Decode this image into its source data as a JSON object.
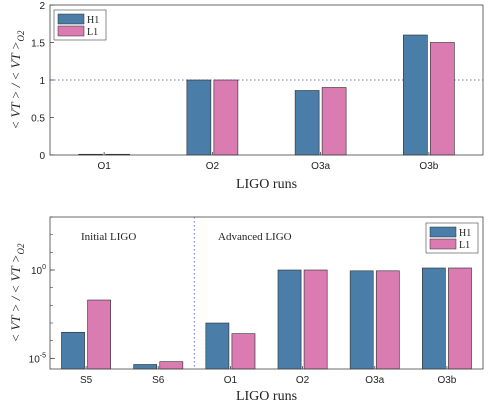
{
  "chart_data": [
    {
      "type": "bar",
      "categories": [
        "O1",
        "O2",
        "O3a",
        "O3b"
      ],
      "series": [
        {
          "name": "H1",
          "color": "#4a7ea8",
          "values": [
            0.01,
            1.0,
            0.86,
            1.6
          ]
        },
        {
          "name": "L1",
          "color": "#da7bb2",
          "values": [
            0.01,
            1.0,
            0.9,
            1.5
          ]
        }
      ],
      "xlabel": "LIGO runs",
      "ylabel": "< VT > / < VT >O2",
      "ylim": [
        0,
        2
      ],
      "yticks": [
        "0",
        "0.5",
        "1",
        "1.5",
        "2"
      ],
      "reference_line": {
        "y": 1,
        "style": "dotted",
        "color": "#6f6fe8"
      },
      "legend": "top-left",
      "grid": false,
      "yscale": "linear"
    },
    {
      "type": "bar",
      "categories": [
        "S5",
        "S6",
        "O1",
        "O2",
        "O3a",
        "O3b"
      ],
      "series": [
        {
          "name": "H1",
          "color": "#4a7ea8",
          "values": [
            0.0003,
            4.5e-06,
            0.001,
            1.0,
            0.9,
            1.3
          ]
        },
        {
          "name": "L1",
          "color": "#da7bb2",
          "values": [
            0.02,
            6.5e-06,
            0.00025,
            1.0,
            0.9,
            1.3
          ]
        }
      ],
      "xlabel": "LIGO runs",
      "ylabel": "< VT > / < VT >O2",
      "ylim": [
        2.5e-06,
        1000
      ],
      "yticks": [
        "10^-5",
        "10^0"
      ],
      "yscale": "log",
      "annotations": [
        "Initial LIGO",
        "Advanced LIGO"
      ],
      "divider_between": [
        "S6",
        "O1"
      ],
      "legend": "top-right",
      "grid": false
    }
  ]
}
